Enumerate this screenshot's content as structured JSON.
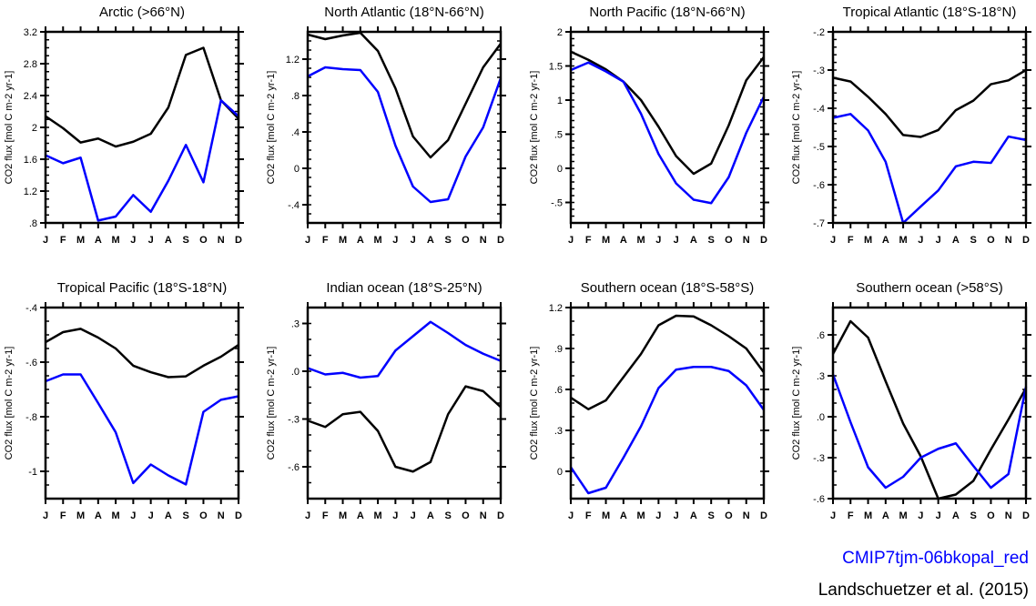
{
  "colors": {
    "model": "#0000ff",
    "observations": "#000000"
  },
  "legend": {
    "model_label": "CMIP7tjm-06bkopal_red",
    "obs_label": "Landschuetzer et al. (2015)"
  },
  "chart_data": [
    {
      "type": "line",
      "title": "Arctic (>66°N)",
      "ylabel": "CO2 flux [mol C m-2 yr-1]",
      "categories": [
        "J",
        "F",
        "M",
        "A",
        "M",
        "J",
        "J",
        "A",
        "S",
        "O",
        "N",
        "D"
      ],
      "ylim": [
        0.8,
        3.2
      ],
      "yticks": [
        0.8,
        1.2,
        1.6,
        2,
        2.4,
        2.8,
        3.2
      ],
      "yticklabels": [
        ".8",
        "1.2",
        "1.6",
        "2",
        "2.4",
        "2.8",
        "3.2"
      ],
      "minor_step": 0.1,
      "series": [
        {
          "name": "Landschuetzer et al. (2015)",
          "color": "#000000",
          "values": [
            2.14,
            1.99,
            1.81,
            1.86,
            1.76,
            1.82,
            1.92,
            2.25,
            2.91,
            3.0,
            2.34,
            2.11
          ]
        },
        {
          "name": "CMIP7tjm-06bkopal_red",
          "color": "#0000ff",
          "values": [
            1.65,
            1.55,
            1.62,
            0.83,
            0.88,
            1.15,
            0.94,
            1.33,
            1.78,
            1.31,
            2.34,
            2.14
          ]
        }
      ]
    },
    {
      "type": "line",
      "title": "North Atlantic (18°N-66°N)",
      "ylabel": "CO2 flux [mol C m-2 yr-1]",
      "categories": [
        "J",
        "F",
        "M",
        "A",
        "M",
        "J",
        "J",
        "A",
        "S",
        "O",
        "N",
        "D"
      ],
      "ylim": [
        -0.6,
        1.5
      ],
      "yticks": [
        -0.4,
        0,
        0.4,
        0.8,
        1.2
      ],
      "yticklabels": [
        "-.4",
        "0",
        ".4",
        ".8",
        "1.2"
      ],
      "minor_step": 0.1,
      "series": [
        {
          "name": "Landschuetzer et al. (2015)",
          "color": "#000000",
          "values": [
            1.47,
            1.42,
            1.46,
            1.49,
            1.29,
            0.88,
            0.35,
            0.12,
            0.31,
            0.71,
            1.11,
            1.37
          ]
        },
        {
          "name": "CMIP7tjm-06bkopal_red",
          "color": "#0000ff",
          "values": [
            1.01,
            1.11,
            1.09,
            1.08,
            0.84,
            0.25,
            -0.2,
            -0.37,
            -0.34,
            0.13,
            0.45,
            0.99
          ]
        }
      ]
    },
    {
      "type": "line",
      "title": "North Pacific (18°N-66°N)",
      "ylabel": "CO2 flux [mol C m-2 yr-1]",
      "categories": [
        "J",
        "F",
        "M",
        "A",
        "M",
        "J",
        "J",
        "A",
        "S",
        "O",
        "N",
        "D"
      ],
      "ylim": [
        -0.8,
        2
      ],
      "yticks": [
        -0.5,
        0,
        0.5,
        1,
        1.5,
        2
      ],
      "yticklabels": [
        "-.5",
        "0",
        ".5",
        "1",
        "1.5",
        "2"
      ],
      "minor_step": 0.1,
      "series": [
        {
          "name": "Landschuetzer et al. (2015)",
          "color": "#000000",
          "values": [
            1.71,
            1.59,
            1.45,
            1.27,
            1.0,
            0.61,
            0.18,
            -0.08,
            0.07,
            0.63,
            1.29,
            1.63
          ]
        },
        {
          "name": "CMIP7tjm-06bkopal_red",
          "color": "#0000ff",
          "values": [
            1.44,
            1.55,
            1.42,
            1.27,
            0.8,
            0.21,
            -0.22,
            -0.46,
            -0.51,
            -0.13,
            0.52,
            1.05
          ]
        }
      ]
    },
    {
      "type": "line",
      "title": "Tropical Atlantic (18°S-18°N)",
      "ylabel": "CO2 flux [mol C m-2 yr-1]",
      "categories": [
        "J",
        "F",
        "M",
        "A",
        "M",
        "J",
        "J",
        "A",
        "S",
        "O",
        "N",
        "D"
      ],
      "ylim": [
        -0.7,
        -0.2
      ],
      "yticks": [
        -0.7,
        -0.6,
        -0.5,
        -0.4,
        -0.3,
        -0.2
      ],
      "yticklabels": [
        "-.7",
        "-.6",
        "-.5",
        "-.4",
        "-.3",
        "-.2"
      ],
      "minor_step": 0.02,
      "series": [
        {
          "name": "Landschuetzer et al. (2015)",
          "color": "#000000",
          "values": [
            -0.32,
            -0.33,
            -0.37,
            -0.415,
            -0.47,
            -0.475,
            -0.457,
            -0.405,
            -0.38,
            -0.337,
            -0.327,
            -0.3
          ]
        },
        {
          "name": "CMIP7tjm-06bkopal_red",
          "color": "#0000ff",
          "values": [
            -0.425,
            -0.415,
            -0.458,
            -0.54,
            -0.7,
            -0.657,
            -0.615,
            -0.552,
            -0.54,
            -0.543,
            -0.474,
            -0.483
          ]
        }
      ]
    },
    {
      "type": "line",
      "title": "Tropical Pacific (18°S-18°N)",
      "ylabel": "CO2 flux [mol C m-2 yr-1]",
      "categories": [
        "J",
        "F",
        "M",
        "A",
        "M",
        "J",
        "J",
        "A",
        "S",
        "O",
        "N",
        "D"
      ],
      "ylim": [
        -1.1,
        -0.4
      ],
      "yticks": [
        -1,
        -0.8,
        -0.6,
        -0.4
      ],
      "yticklabels": [
        "-1",
        "-.8",
        "-.6",
        "-.4"
      ],
      "minor_step": 0.05,
      "series": [
        {
          "name": "Landschuetzer et al. (2015)",
          "color": "#000000",
          "values": [
            -0.527,
            -0.49,
            -0.478,
            -0.51,
            -0.55,
            -0.613,
            -0.637,
            -0.655,
            -0.652,
            -0.613,
            -0.58,
            -0.537
          ]
        },
        {
          "name": "CMIP7tjm-06bkopal_red",
          "color": "#0000ff",
          "values": [
            -0.67,
            -0.645,
            -0.645,
            -0.75,
            -0.857,
            -1.043,
            -0.975,
            -1.015,
            -1.048,
            -0.782,
            -0.738,
            -0.725
          ]
        }
      ]
    },
    {
      "type": "line",
      "title": "Indian ocean (18°S-25°N)",
      "ylabel": "CO2 flux [mol C m-2 yr-1]",
      "categories": [
        "J",
        "F",
        "M",
        "A",
        "M",
        "J",
        "J",
        "A",
        "S",
        "O",
        "N",
        "D"
      ],
      "ylim": [
        -0.8,
        0.4
      ],
      "yticks": [
        -0.6,
        -0.3,
        0,
        0.3
      ],
      "yticklabels": [
        "-.6",
        "-.3",
        ".0",
        ".3"
      ],
      "minor_step": 0.1,
      "series": [
        {
          "name": "Landschuetzer et al. (2015)",
          "color": "#000000",
          "values": [
            -0.31,
            -0.35,
            -0.27,
            -0.255,
            -0.375,
            -0.6,
            -0.63,
            -0.57,
            -0.27,
            -0.095,
            -0.125,
            -0.225
          ]
        },
        {
          "name": "CMIP7tjm-06bkopal_red",
          "color": "#0000ff",
          "values": [
            0.02,
            -0.02,
            -0.01,
            -0.04,
            -0.03,
            0.13,
            0.22,
            0.31,
            0.24,
            0.165,
            0.11,
            0.065
          ]
        }
      ]
    },
    {
      "type": "line",
      "title": "Southern ocean (18°S-58°S)",
      "ylabel": "CO2 flux [mol C m-2 yr-1]",
      "categories": [
        "J",
        "F",
        "M",
        "A",
        "M",
        "J",
        "J",
        "A",
        "S",
        "O",
        "N",
        "D"
      ],
      "ylim": [
        -0.2,
        1.2
      ],
      "yticks": [
        0,
        0.3,
        0.6,
        0.9,
        1.2
      ],
      "yticklabels": [
        "0",
        ".3",
        ".6",
        ".9",
        "1.2"
      ],
      "minor_step": 0.1,
      "series": [
        {
          "name": "Landschuetzer et al. (2015)",
          "color": "#000000",
          "values": [
            0.54,
            0.455,
            0.52,
            0.69,
            0.86,
            1.07,
            1.14,
            1.135,
            1.07,
            0.99,
            0.9,
            0.725
          ]
        },
        {
          "name": "CMIP7tjm-06bkopal_red",
          "color": "#0000ff",
          "values": [
            0.03,
            -0.16,
            -0.12,
            0.1,
            0.33,
            0.61,
            0.745,
            0.765,
            0.765,
            0.735,
            0.63,
            0.45
          ]
        }
      ]
    },
    {
      "type": "line",
      "title": "Southern ocean (>58°S)",
      "ylabel": "CO2 flux [mol C m-2 yr-1]",
      "categories": [
        "J",
        "F",
        "M",
        "A",
        "M",
        "J",
        "J",
        "A",
        "S",
        "O",
        "N",
        "D"
      ],
      "ylim": [
        -0.6,
        0.8
      ],
      "yticks": [
        -0.6,
        -0.3,
        0,
        0.3,
        0.6
      ],
      "yticklabels": [
        "-.6",
        "-.3",
        ".0",
        ".3",
        ".6"
      ],
      "minor_step": 0.1,
      "series": [
        {
          "name": "Landschuetzer et al. (2015)",
          "color": "#000000",
          "values": [
            0.46,
            0.7,
            0.58,
            0.26,
            -0.05,
            -0.29,
            -0.6,
            -0.57,
            -0.47,
            -0.24,
            -0.02,
            0.21
          ]
        },
        {
          "name": "CMIP7tjm-06bkopal_red",
          "color": "#0000ff",
          "values": [
            0.31,
            -0.04,
            -0.37,
            -0.52,
            -0.44,
            -0.3,
            -0.235,
            -0.195,
            -0.36,
            -0.52,
            -0.42,
            0.22
          ]
        }
      ]
    }
  ]
}
